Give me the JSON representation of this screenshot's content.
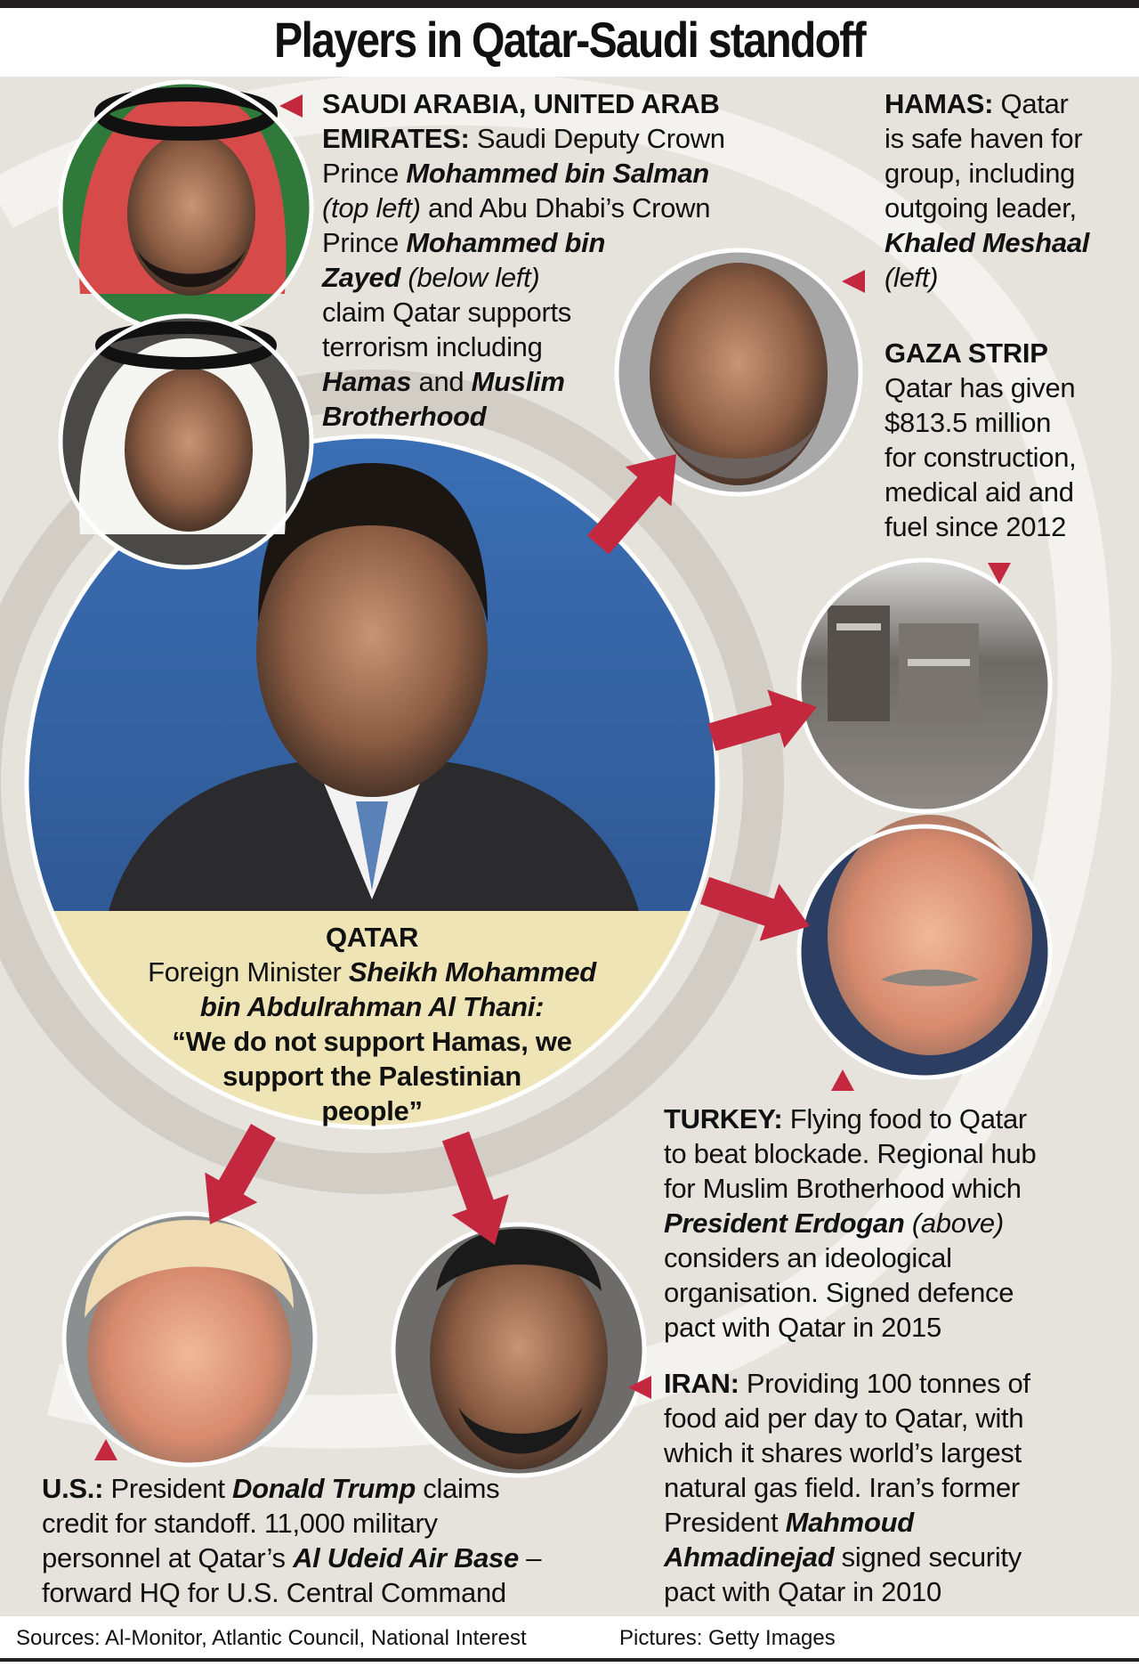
{
  "title": "Players in Qatar-Saudi standoff",
  "colors": {
    "arrow": "#c4283f",
    "background": "#e6e3dc",
    "caption_band": "#efe4b5"
  },
  "blocks": {
    "saudi": [
      [
        {
          "t": "SAUDI ARABIA, UNITED ARAB",
          "s": "b"
        }
      ],
      [
        {
          "t": "EMIRATES:",
          "s": "b"
        },
        {
          "t": " Saudi Deputy Crown",
          "s": "n"
        }
      ],
      [
        {
          "t": "Prince ",
          "s": "n"
        },
        {
          "t": "Mohammed bin Salman",
          "s": "bi"
        }
      ],
      [
        {
          "t": "(top left)",
          "s": "i"
        },
        {
          "t": " and Abu Dhabi’s Crown",
          "s": "n"
        }
      ],
      [
        {
          "t": "Prince ",
          "s": "n"
        },
        {
          "t": "Mohammed bin",
          "s": "bi"
        }
      ],
      [
        {
          "t": "Zayed",
          "s": "bi"
        },
        {
          "t": " (below left)",
          "s": "i"
        }
      ],
      [
        {
          "t": "claim Qatar supports",
          "s": "n"
        }
      ],
      [
        {
          "t": "terrorism including",
          "s": "n"
        }
      ],
      [
        {
          "t": "Hamas",
          "s": "bi"
        },
        {
          "t": " and ",
          "s": "n"
        },
        {
          "t": "Muslim",
          "s": "bi"
        }
      ],
      [
        {
          "t": "Brotherhood",
          "s": "bi"
        }
      ]
    ],
    "hamas": [
      [
        {
          "t": "HAMAS:",
          "s": "b"
        },
        {
          "t": " Qatar",
          "s": "n"
        }
      ],
      [
        {
          "t": "is safe haven for",
          "s": "n"
        }
      ],
      [
        {
          "t": "group, including",
          "s": "n"
        }
      ],
      [
        {
          "t": "outgoing leader,",
          "s": "n"
        }
      ],
      [
        {
          "t": "Khaled Meshaal",
          "s": "bi"
        }
      ],
      [
        {
          "t": "(left)",
          "s": "i"
        }
      ]
    ],
    "gaza": [
      [
        {
          "t": "GAZA STRIP",
          "s": "b"
        }
      ],
      [
        {
          "t": "Qatar has given",
          "s": "n"
        }
      ],
      [
        {
          "t": "$813.5 million",
          "s": "n"
        }
      ],
      [
        {
          "t": "for construction,",
          "s": "n"
        }
      ],
      [
        {
          "t": "medical aid and",
          "s": "n"
        }
      ],
      [
        {
          "t": "fuel since 2012",
          "s": "n"
        }
      ]
    ],
    "qatar": [
      [
        {
          "t": "QATAR",
          "s": "b"
        }
      ],
      [
        {
          "t": "Foreign Minister ",
          "s": "n"
        },
        {
          "t": "Sheikh Mohammed",
          "s": "bi"
        }
      ],
      [
        {
          "t": "bin Abdulrahman Al Thani:",
          "s": "bi"
        }
      ],
      [
        {
          "t": "“We do not support Hamas, we",
          "s": "b"
        }
      ],
      [
        {
          "t": "support the Palestinian",
          "s": "b"
        }
      ],
      [
        {
          "t": "people”",
          "s": "b"
        }
      ]
    ],
    "turkey": [
      [
        {
          "t": "TURKEY:",
          "s": "b"
        },
        {
          "t": " Flying food to Qatar",
          "s": "n"
        }
      ],
      [
        {
          "t": "to beat blockade. Regional hub",
          "s": "n"
        }
      ],
      [
        {
          "t": "for Muslim Brotherhood which",
          "s": "n"
        }
      ],
      [
        {
          "t": "President Erdogan",
          "s": "bi"
        },
        {
          "t": " (above)",
          "s": "i"
        }
      ],
      [
        {
          "t": "considers an ideological",
          "s": "n"
        }
      ],
      [
        {
          "t": "organisation. Signed defence",
          "s": "n"
        }
      ],
      [
        {
          "t": "pact with Qatar in 2015",
          "s": "n"
        }
      ]
    ],
    "iran": [
      [
        {
          "t": "IRAN:",
          "s": "b"
        },
        {
          "t": " Providing 100 tonnes of",
          "s": "n"
        }
      ],
      [
        {
          "t": "food aid per day to Qatar, with",
          "s": "n"
        }
      ],
      [
        {
          "t": "which it shares world’s largest",
          "s": "n"
        }
      ],
      [
        {
          "t": "natural gas field. Iran’s former",
          "s": "n"
        }
      ],
      [
        {
          "t": "President ",
          "s": "n"
        },
        {
          "t": "Mahmoud",
          "s": "bi"
        }
      ],
      [
        {
          "t": "Ahmadinejad",
          "s": "bi"
        },
        {
          "t": " signed security",
          "s": "n"
        }
      ],
      [
        {
          "t": "pact with Qatar in 2010",
          "s": "n"
        }
      ]
    ],
    "us": [
      [
        {
          "t": "U.S.:",
          "s": "b"
        },
        {
          "t": " President ",
          "s": "n"
        },
        {
          "t": "Donald Trump",
          "s": "bi"
        },
        {
          "t": " claims",
          "s": "n"
        }
      ],
      [
        {
          "t": "credit for standoff. 11,000 military",
          "s": "n"
        }
      ],
      [
        {
          "t": "personnel at Qatar’s ",
          "s": "n"
        },
        {
          "t": "Al Udeid Air Base",
          "s": "bi"
        },
        {
          "t": " –",
          "s": "n"
        }
      ],
      [
        {
          "t": "forward HQ for U.S. Central Command",
          "s": "n"
        }
      ]
    ]
  },
  "footer": {
    "sources": "Sources: Al-Monitor, Atlantic Council, National Interest",
    "pictures": "Pictures: Getty Images"
  }
}
